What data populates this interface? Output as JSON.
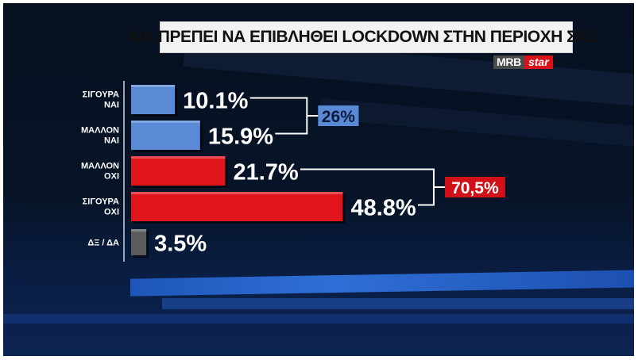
{
  "header": {
    "title": "ΘΑ ΠΡΕΠΕΙ ΝΑ ΕΠΙΒΛΗΘΕΙ LOCKDOWN ΣΤΗΝ ΠΕΡΙΟΧΗ ΣΑΣ;",
    "logo_mrb": "MRB",
    "logo_star": "star"
  },
  "chart_data": {
    "type": "bar",
    "orientation": "horizontal",
    "title": "ΘΑ ΠΡΕΠΕΙ ΝΑ ΕΠΙΒΛΗΘΕΙ LOCKDOWN ΣΤΗΝ ΠΕΡΙΟΧΗ ΣΑΣ;",
    "categories": [
      [
        "ΣΙΓΟΥΡΑ",
        "ΝΑΙ"
      ],
      [
        "ΜΑΛΛΟΝ",
        "ΝΑΙ"
      ],
      [
        "ΜΑΛΛΟΝ",
        "ΟΧΙ"
      ],
      [
        "ΣΙΓΟΥΡΑ",
        "ΟΧΙ"
      ],
      [
        "ΔΞ / ΔΑ"
      ]
    ],
    "values": [
      10.1,
      15.9,
      21.7,
      48.8,
      3.5
    ],
    "value_labels": [
      "10.1%",
      "15.9%",
      "21.7%",
      "48.8%",
      "3.5%"
    ],
    "colors": [
      "#5a8ad6",
      "#5a8ad6",
      "#e0151c",
      "#e0151c",
      "#5c5c5c"
    ],
    "groups": [
      {
        "label": "26%",
        "members": [
          0,
          1
        ],
        "color": "#5a8ad6"
      },
      {
        "label": "70,5%",
        "members": [
          2,
          3
        ],
        "color": "#d01218"
      }
    ],
    "xlim": [
      0,
      50
    ],
    "grid": false,
    "legend": "none"
  }
}
